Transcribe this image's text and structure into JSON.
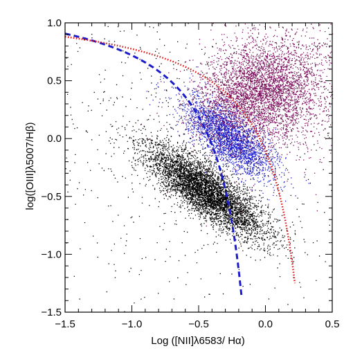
{
  "chart_data": {
    "type": "scatter",
    "title": "",
    "xlabel": "Log ([NII]λ6583/ Hα)",
    "ylabel": "log([OIII]λ5007/Hβ)",
    "xlim": [
      -1.5,
      0.5
    ],
    "ylim": [
      -1.5,
      1.0
    ],
    "x_ticks": [
      "-1.5",
      "-1.0",
      "-0.5",
      "0.0",
      "0.5"
    ],
    "y_ticks": [
      "-1.5",
      "-1.0",
      "-0.5",
      "0.0",
      "0.5",
      "1.0"
    ],
    "grid": false,
    "legend": "none",
    "point_groups": [
      {
        "color": "#000000",
        "core": [
          -0.45,
          -0.45
        ],
        "axis": [
          -0.75,
          0.65
        ],
        "spread_major": 0.28,
        "spread_minor": 0.09,
        "count": 5200
      },
      {
        "color": "#000000",
        "core": [
          -0.6,
          0.0
        ],
        "axis": [
          0.6,
          0.8
        ],
        "spread_major": 0.75,
        "spread_minor": 0.75,
        "count": 900
      },
      {
        "color": "#1b1bcc",
        "core": [
          -0.28,
          0.02
        ],
        "axis": [
          -0.7,
          0.7
        ],
        "spread_major": 0.22,
        "spread_minor": 0.09,
        "count": 2600
      },
      {
        "color": "#7a0a5a",
        "core": [
          -0.05,
          0.42
        ],
        "axis": [
          0.7,
          0.7
        ],
        "spread_major": 0.24,
        "spread_minor": 0.2,
        "count": 3600
      },
      {
        "color": "#7a0a5a",
        "core": [
          0.25,
          0.35
        ],
        "axis": [
          0.6,
          0.8
        ],
        "spread_major": 0.35,
        "spread_minor": 0.3,
        "count": 900
      }
    ],
    "curves": [
      {
        "name": "",
        "style": "dashed",
        "color": "#1b1bcc",
        "formula": "0.61/(x-0.05)+1.3",
        "x_range": [
          -1.5,
          -0.18
        ]
      },
      {
        "name": "",
        "style": "dotted",
        "color": "#dd1111",
        "formula": "0.61/(x-0.47)+1.19",
        "x_range": [
          -1.5,
          0.22
        ]
      }
    ]
  }
}
